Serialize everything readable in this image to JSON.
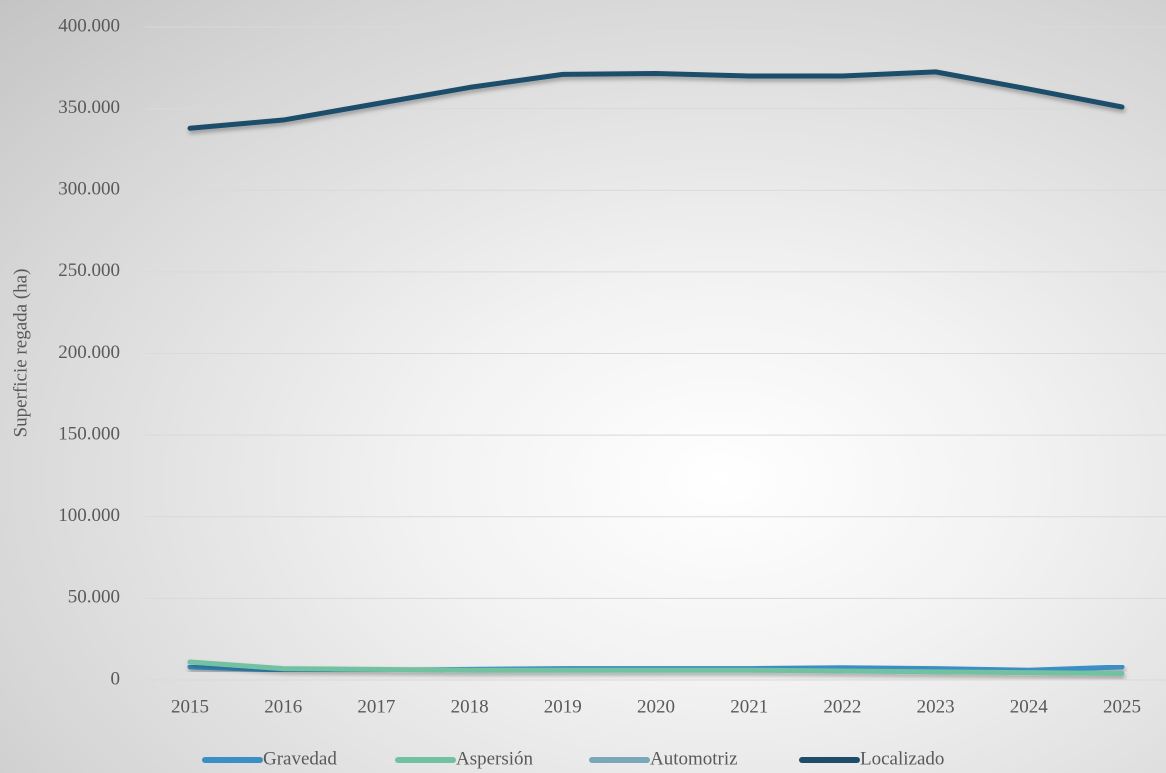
{
  "chart_data": {
    "type": "line",
    "ylabel": "Superficie regada (ha)",
    "categories": [
      "2015",
      "2016",
      "2017",
      "2018",
      "2019",
      "2020",
      "2021",
      "2022",
      "2023",
      "2024",
      "2025"
    ],
    "series": [
      {
        "name": "Gravedad",
        "color": "#3a8fc4",
        "values": [
          8000,
          6000,
          6000,
          6500,
          7000,
          7000,
          7000,
          7500,
          7000,
          6000,
          8000
        ]
      },
      {
        "name": "Aspersión",
        "color": "#72c2a2",
        "values": [
          11000,
          7000,
          6500,
          6000,
          6000,
          6000,
          6000,
          5500,
          5000,
          4500,
          4000
        ]
      },
      {
        "name": "Automotriz",
        "color": "#7aa8b8",
        "values": [
          3000,
          3000,
          3000,
          3000,
          3000,
          3000,
          3000,
          3000,
          3000,
          3000,
          3000
        ]
      },
      {
        "name": "Localizado",
        "color": "#1e4d6b",
        "values": [
          338000,
          343000,
          353000,
          363000,
          371000,
          371500,
          370000,
          370000,
          372500,
          362000,
          351000
        ]
      }
    ],
    "ylim": [
      0,
      400000
    ],
    "yticks": [
      0,
      {
        "value": 50000,
        "label": "50.000"
      },
      {
        "value": 100000,
        "label": "100.000"
      },
      {
        "value": 150000,
        "label": "150.000"
      },
      {
        "value": 200000,
        "label": "200.000"
      },
      {
        "value": 250000,
        "label": "250.000"
      },
      {
        "value": 300000,
        "label": "300.000"
      },
      {
        "value": 350000,
        "label": "350.000"
      },
      {
        "value": 400000,
        "label": "400.000"
      }
    ],
    "grid": true
  }
}
